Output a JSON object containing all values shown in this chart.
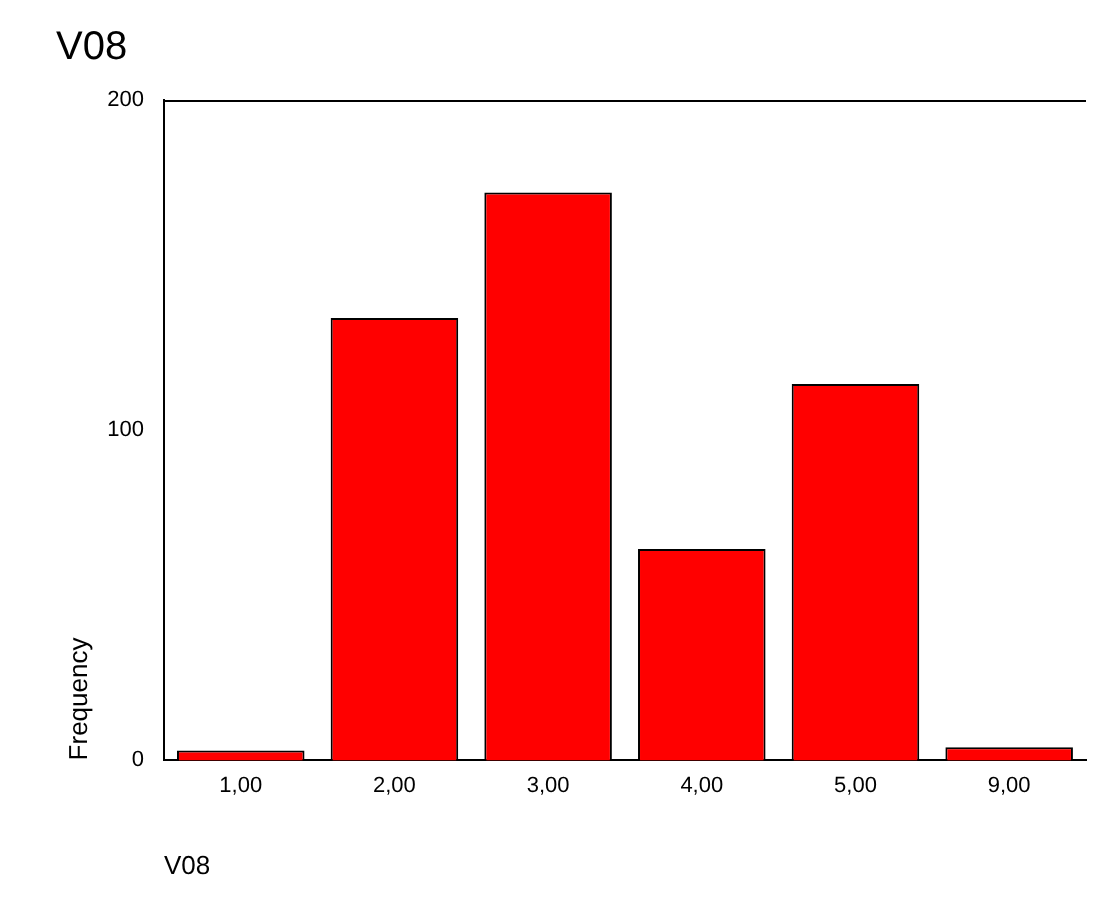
{
  "chart_data": {
    "type": "bar",
    "title": "V08",
    "xlabel": "V08",
    "ylabel": "Frequency",
    "categories": [
      "1,00",
      "2,00",
      "3,00",
      "4,00",
      "5,00",
      "9,00"
    ],
    "values": [
      3,
      134,
      172,
      64,
      114,
      4
    ],
    "color": "#ff0000",
    "ylim": [
      0,
      200
    ],
    "yticks": [
      0,
      100,
      200
    ],
    "grid": false,
    "legend": false
  }
}
